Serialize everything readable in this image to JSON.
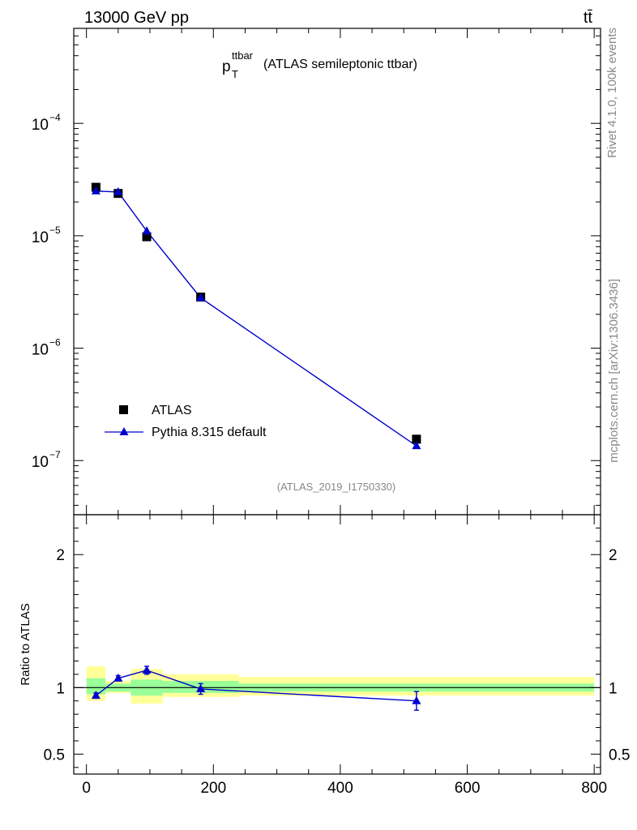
{
  "header": {
    "energy_label": "13000 GeV pp",
    "process_label": "tt̄"
  },
  "side_labels": {
    "rivet": "Rivet 4.1.0,  100k events",
    "source": "mcplots.cern.ch [arXiv:1306.3436]"
  },
  "colors": {
    "mc": "#0000cc",
    "data": "#000000",
    "band_outer": "#ffff99",
    "band_inner": "#99ff99"
  },
  "chart_data": [
    {
      "type": "scatter",
      "title": "p_T^{ttbar} (ATLAS semileptonic ttbar)",
      "title_main": "p",
      "title_sub": "T",
      "title_sup": "ttbar",
      "title_rest": "(ATLAS semileptonic ttbar)",
      "yscale": "log",
      "xlim": [
        -20,
        810
      ],
      "ylim": [
        3.3e-08,
        0.0007
      ],
      "y_ticks": [
        1e-07,
        1e-06,
        1e-05,
        0.0001
      ],
      "y_tick_labels": [
        {
          "base": "10",
          "exp": "−7"
        },
        {
          "base": "10",
          "exp": "−6"
        },
        {
          "base": "10",
          "exp": "−5"
        },
        {
          "base": "10",
          "exp": "−4"
        }
      ],
      "analysis_label": "(ATLAS_2019_I1750330)",
      "legend": [
        {
          "label": "ATLAS",
          "marker": "square"
        },
        {
          "label": "Pythia 8.315 default",
          "marker": "triangle"
        }
      ],
      "legend_position": "lower-left",
      "series": [
        {
          "name": "ATLAS",
          "x": [
            15,
            50,
            95,
            180,
            520
          ],
          "y": [
            2.7e-05,
            2.38e-05,
            9.8e-06,
            2.85e-06,
            1.55e-07
          ]
        },
        {
          "name": "Pythia 8.315 default",
          "x": [
            15,
            50,
            95,
            180,
            520
          ],
          "y": [
            2.5e-05,
            2.45e-05,
            1.1e-05,
            2.8e-06,
            1.35e-07
          ],
          "bins": [
            [
              0,
              30
            ],
            [
              30,
              70
            ],
            [
              70,
              120
            ],
            [
              120,
              240
            ],
            [
              240,
              800
            ]
          ]
        }
      ]
    },
    {
      "type": "line",
      "ylabel": "Ratio to ATLAS",
      "xlim": [
        -20,
        810
      ],
      "ylim": [
        0.35,
        2.3
      ],
      "x_ticks": [
        0,
        200,
        400,
        600,
        800
      ],
      "x_tick_labels": [
        "0",
        "200",
        "400",
        "600",
        "800"
      ],
      "y_ticks": [
        0.5,
        1,
        2
      ],
      "y_tick_labels": [
        "0.5",
        "1",
        "2"
      ],
      "bands": [
        {
          "x0": 0,
          "x1": 30,
          "inner": [
            0.95,
            1.07
          ],
          "outer": [
            0.9,
            1.16
          ]
        },
        {
          "x0": 30,
          "x1": 70,
          "inner": [
            0.97,
            1.03
          ],
          "outer": [
            0.96,
            1.05
          ]
        },
        {
          "x0": 70,
          "x1": 120,
          "inner": [
            0.94,
            1.06
          ],
          "outer": [
            0.88,
            1.14
          ]
        },
        {
          "x0": 120,
          "x1": 240,
          "inner": [
            0.96,
            1.05
          ],
          "outer": [
            0.93,
            1.1
          ]
        },
        {
          "x0": 240,
          "x1": 800,
          "inner": [
            0.97,
            1.03
          ],
          "outer": [
            0.94,
            1.08
          ]
        }
      ],
      "series": [
        {
          "name": "Pythia 8.315 default",
          "x": [
            15,
            50,
            95,
            180,
            520
          ],
          "y": [
            0.94,
            1.07,
            1.13,
            0.99,
            0.9
          ],
          "err": [
            0.02,
            0.02,
            0.03,
            0.04,
            0.07
          ]
        }
      ]
    }
  ]
}
